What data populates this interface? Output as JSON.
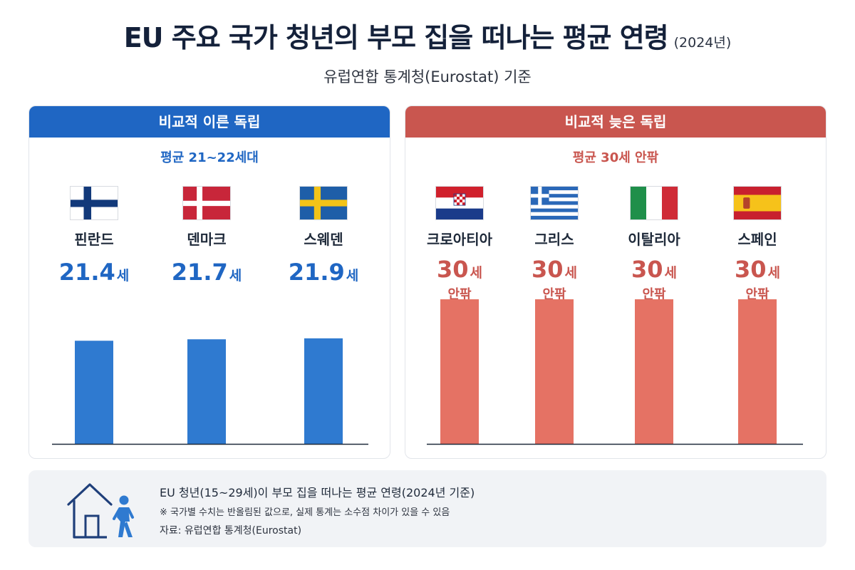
{
  "header": {
    "title": "EU 주요 국가 청년의 부모 집을 떠나는 평균 연령",
    "year": "(2024년)",
    "subtitle": "유럽연합 통계청(Eurostat) 기준"
  },
  "chart_data": [
    {
      "type": "bar",
      "title": "비교적 이른 독립",
      "subtitle": "평균 21~22세대",
      "color": "#2f7ad0",
      "categories": [
        "핀란드",
        "덴마크",
        "스웨덴"
      ],
      "values": [
        21.4,
        21.7,
        21.9
      ],
      "value_labels": [
        "21.4",
        "21.7",
        "21.9"
      ],
      "unit": "세",
      "qualifier": ""
    },
    {
      "type": "bar",
      "title": "비교적 늦은 독립",
      "subtitle": "평균 30세 안팎",
      "color": "#e57264",
      "categories": [
        "크로아티아",
        "그리스",
        "이탈리아",
        "스페인"
      ],
      "values": [
        30,
        30,
        30,
        30
      ],
      "value_labels": [
        "30",
        "30",
        "30",
        "30"
      ],
      "unit": "세",
      "qualifier": "안팎"
    }
  ],
  "flags": [
    "finland-flag-icon",
    "denmark-flag-icon",
    "sweden-flag-icon",
    "croatia-flag-icon",
    "greece-flag-icon",
    "italy-flag-icon",
    "spain-flag-icon"
  ],
  "colors": {
    "blue": "#1f66c3",
    "red": "#c9564f",
    "bar_blue": "#2f7ad0",
    "bar_red": "#e57264"
  },
  "footer": {
    "main": "EU 청년(15~29세)이 부모 집을 떠나는 평균 연령(2024년 기준)",
    "note": "※ 국가별 수치는 반올림된 값으로, 실제 통계는 소수점 차이가 있을 수 있음",
    "source": "자료: 유럽연합 통계청(Eurostat)",
    "icon": "house-person-icon"
  }
}
